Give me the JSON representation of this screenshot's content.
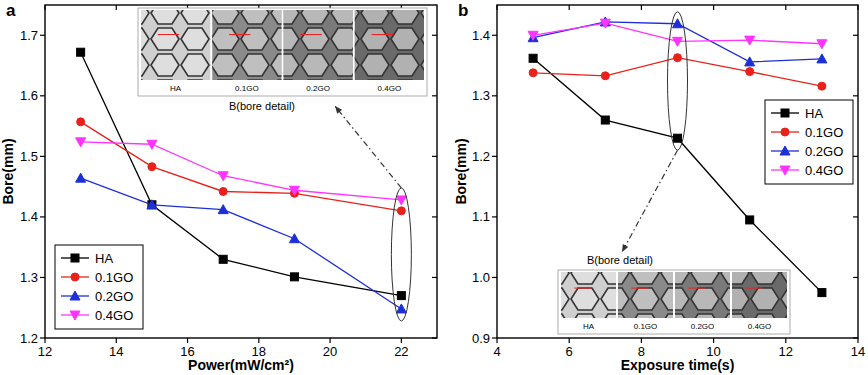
{
  "chart_data": [
    {
      "type": "line",
      "title": "a",
      "x_label": "Power(mW/cm²)",
      "y_label": "Bore(mm)",
      "x": [
        13,
        15,
        17,
        19,
        22
      ],
      "xlim": [
        12,
        23
      ],
      "xticks": [
        12,
        14,
        16,
        18,
        20,
        22
      ],
      "ylim": [
        1.2,
        1.75
      ],
      "yticks": [
        1.2,
        1.3,
        1.4,
        1.5,
        1.6,
        1.7
      ],
      "legend": "lower left",
      "series": [
        {
          "name": "HA",
          "color": "#000000",
          "marker": "square",
          "values": [
            1.672,
            1.42,
            1.33,
            1.301,
            1.27
          ]
        },
        {
          "name": "0.1GO",
          "color": "#e8221b",
          "marker": "circle",
          "values": [
            1.557,
            1.483,
            1.442,
            1.439,
            1.41
          ]
        },
        {
          "name": "0.2GO",
          "color": "#1d2fd6",
          "marker": "triangle-up",
          "values": [
            1.464,
            1.42,
            1.412,
            1.364,
            1.248
          ]
        },
        {
          "name": "0.4GO",
          "color": "#ff33ff",
          "marker": "triangle-down",
          "values": [
            1.524,
            1.52,
            1.468,
            1.444,
            1.428
          ]
        }
      ],
      "inset": {
        "title": "B(bore detail)",
        "labels": [
          "HA",
          "0.1GO",
          "0.2GO",
          "0.4GO"
        ]
      }
    },
    {
      "type": "line",
      "title": "b",
      "x_label": "Exposure time(s)",
      "y_label": "Bore(mm)",
      "x": [
        5,
        7,
        9,
        11,
        13
      ],
      "xlim": [
        4,
        14
      ],
      "xticks": [
        4,
        6,
        8,
        10,
        12,
        14
      ],
      "ylim": [
        0.9,
        1.45
      ],
      "yticks": [
        0.9,
        {
          "value": 1,
          "label": "1.0"
        },
        1.1,
        1.2,
        1.3,
        1.4
      ],
      "legend": "right",
      "series": [
        {
          "name": "HA",
          "color": "#000000",
          "marker": "square",
          "values": [
            1.362,
            1.26,
            1.23,
            1.095,
            0.975
          ]
        },
        {
          "name": "0.1GO",
          "color": "#e8221b",
          "marker": "circle",
          "values": [
            1.338,
            1.333,
            1.363,
            1.34,
            1.316
          ]
        },
        {
          "name": "0.2GO",
          "color": "#1d2fd6",
          "marker": "triangle-up",
          "values": [
            1.396,
            1.422,
            1.419,
            1.356,
            1.361
          ]
        },
        {
          "name": "0.4GO",
          "color": "#ff33ff",
          "marker": "triangle-down",
          "values": [
            1.4,
            1.42,
            1.39,
            1.392,
            1.386
          ]
        }
      ],
      "inset": {
        "title": "B(bore detail)",
        "labels": [
          "HA",
          "0.1GO",
          "0.2GO",
          "0.4GO"
        ]
      }
    }
  ]
}
